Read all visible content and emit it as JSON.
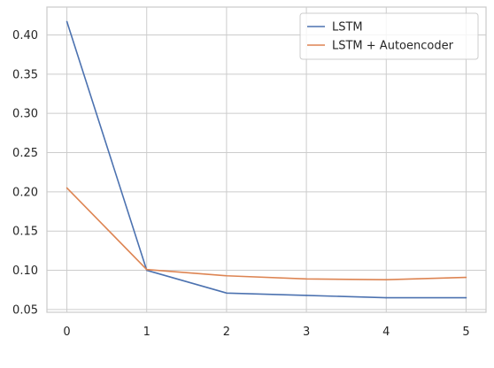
{
  "chart_data": {
    "type": "line",
    "title": "",
    "xlabel": "",
    "ylabel": "",
    "x": [
      0,
      1,
      2,
      3,
      4,
      5
    ],
    "xlim": [
      -0.25,
      5.25
    ],
    "ylim": [
      0.0465,
      0.4355
    ],
    "xticks": [
      0,
      1,
      2,
      3,
      4,
      5
    ],
    "yticks": [
      0.05,
      0.1,
      0.15,
      0.2,
      0.25,
      0.3,
      0.35,
      0.4
    ],
    "grid": true,
    "legend_position": "top-right",
    "series": [
      {
        "name": "LSTM",
        "color": "#4c72b0",
        "values": [
          0.417,
          0.1,
          0.071,
          0.068,
          0.065,
          0.065
        ]
      },
      {
        "name": "LSTM + Autoencoder",
        "color": "#dd8452",
        "values": [
          0.205,
          0.101,
          0.093,
          0.089,
          0.088,
          0.091
        ]
      }
    ]
  }
}
